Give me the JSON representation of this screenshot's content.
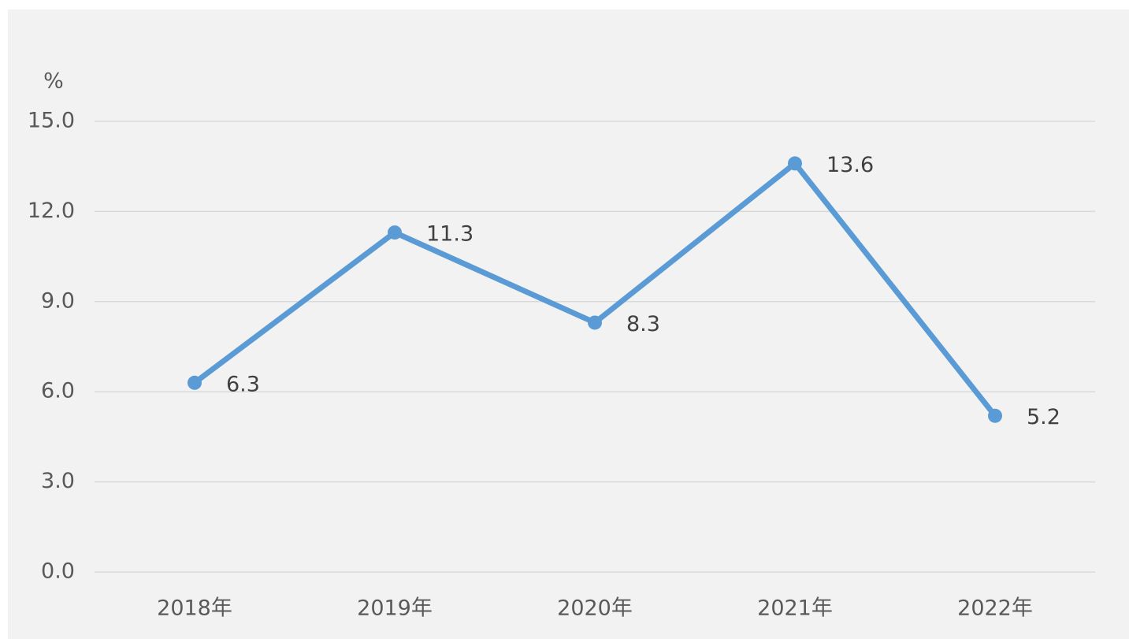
{
  "chart_data": {
    "type": "line",
    "y_label": "%",
    "categories": [
      "2018年",
      "2019年",
      "2020年",
      "2021年",
      "2022年"
    ],
    "series": [
      {
        "name": "%",
        "color": "#5b9bd5",
        "values": [
          6.3,
          11.3,
          8.3,
          13.6,
          5.2
        ]
      }
    ],
    "ylim": [
      0,
      15
    ],
    "yticks": [
      {
        "value": 0,
        "label": "0.0"
      },
      {
        "value": 3,
        "label": "3.0"
      },
      {
        "value": 6,
        "label": "6.0"
      },
      {
        "value": 9,
        "label": "9.0"
      },
      {
        "value": 12,
        "label": "12.0"
      },
      {
        "value": 15,
        "label": "15.0"
      }
    ],
    "grid": true
  }
}
